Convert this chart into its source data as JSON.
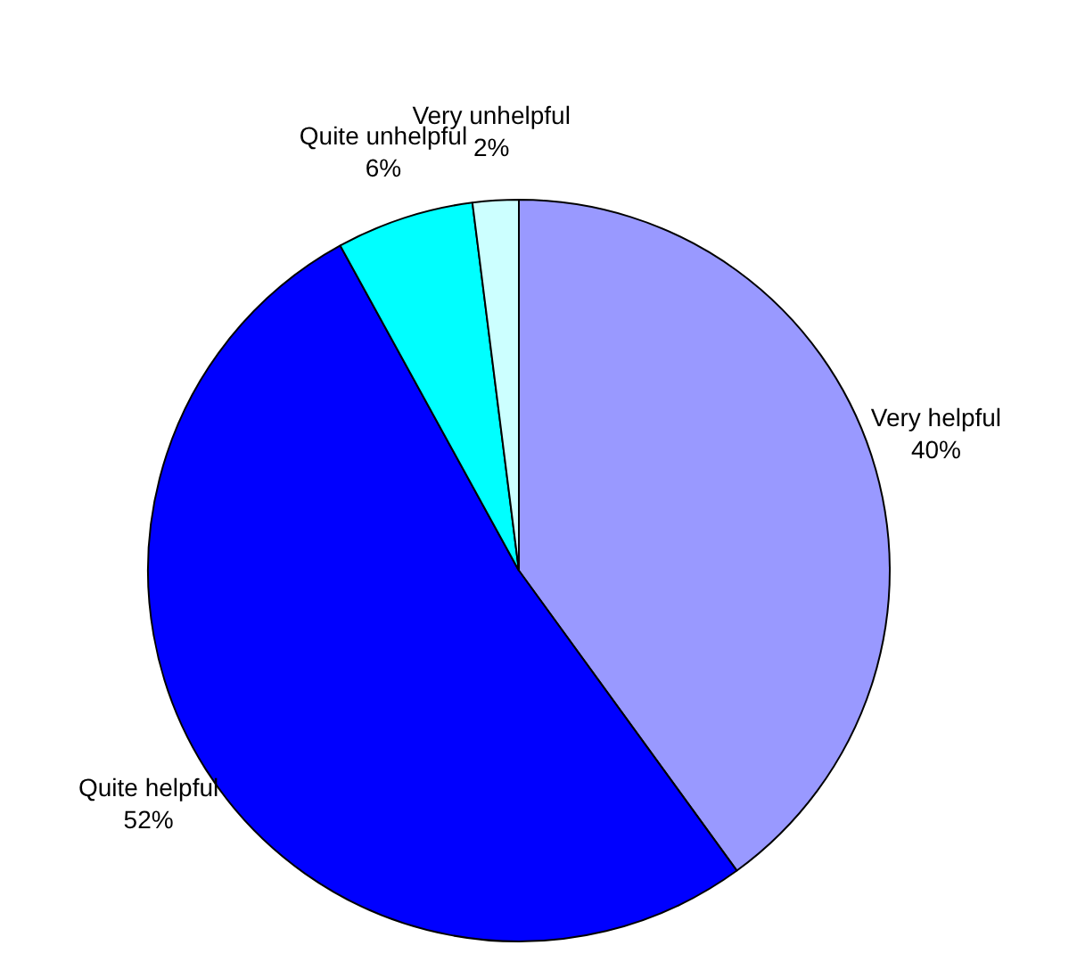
{
  "chart_data": {
    "type": "pie",
    "categories": [
      "Very helpful",
      "Quite helpful",
      "Quite unhelpful",
      "Very unhelpful"
    ],
    "values": [
      40,
      52,
      6,
      2
    ],
    "value_labels": [
      "40%",
      "52%",
      "6%",
      "2%"
    ],
    "colors": [
      "#9999ff",
      "#0000ff",
      "#00ffff",
      "#ccffff"
    ],
    "legend": false
  }
}
